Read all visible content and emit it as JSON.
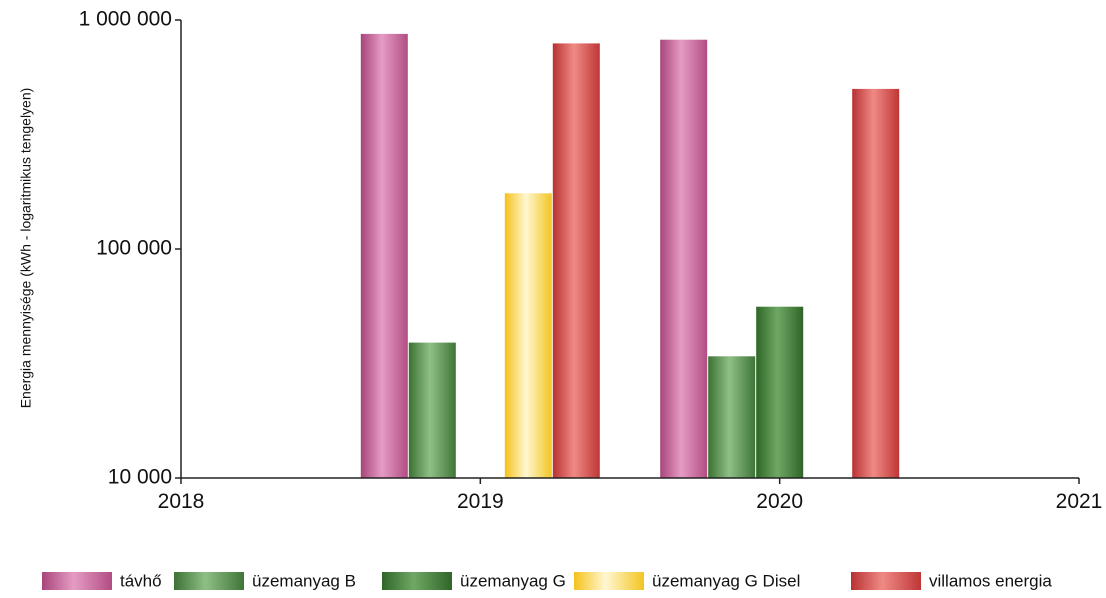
{
  "chart_data": {
    "type": "bar",
    "ylabel": "Energia mennyisége (kWh - logaritmikus tengelyen)",
    "yscale": "log",
    "ylim": [
      10000,
      1000000
    ],
    "yticks": [
      10000,
      100000,
      1000000
    ],
    "ytick_labels": [
      "10 000",
      "100 000",
      "1 000 000"
    ],
    "xlim": [
      2018,
      2021
    ],
    "xticks": [
      2018,
      2019,
      2020,
      2021
    ],
    "xtick_labels": [
      "2018",
      "2019",
      "2020",
      "2021"
    ],
    "grid": false,
    "legend_position": "bottom",
    "series": [
      {
        "name": "távhő",
        "color": "#c2588f",
        "points": [
          {
            "x": 2019,
            "y": 870000
          },
          {
            "x": 2020,
            "y": 820000
          }
        ]
      },
      {
        "name": "üzemanyag B",
        "color": "#4f8a45",
        "points": [
          {
            "x": 2019,
            "y": 39000
          },
          {
            "x": 2020,
            "y": 34000
          }
        ]
      },
      {
        "name": "üzemanyag G",
        "color": "#3a7a30",
        "points": [
          {
            "x": 2019,
            "y": null
          },
          {
            "x": 2020,
            "y": 56000
          }
        ]
      },
      {
        "name": "üzemanyag G Disel",
        "color": "#f0c419",
        "points": [
          {
            "x": 2019,
            "y": 175000
          },
          {
            "x": 2020,
            "y": null
          }
        ]
      },
      {
        "name": "villamos energia",
        "color": "#cc3b3b",
        "points": [
          {
            "x": 2019,
            "y": 790000
          },
          {
            "x": 2020,
            "y": 500000
          }
        ]
      }
    ]
  }
}
